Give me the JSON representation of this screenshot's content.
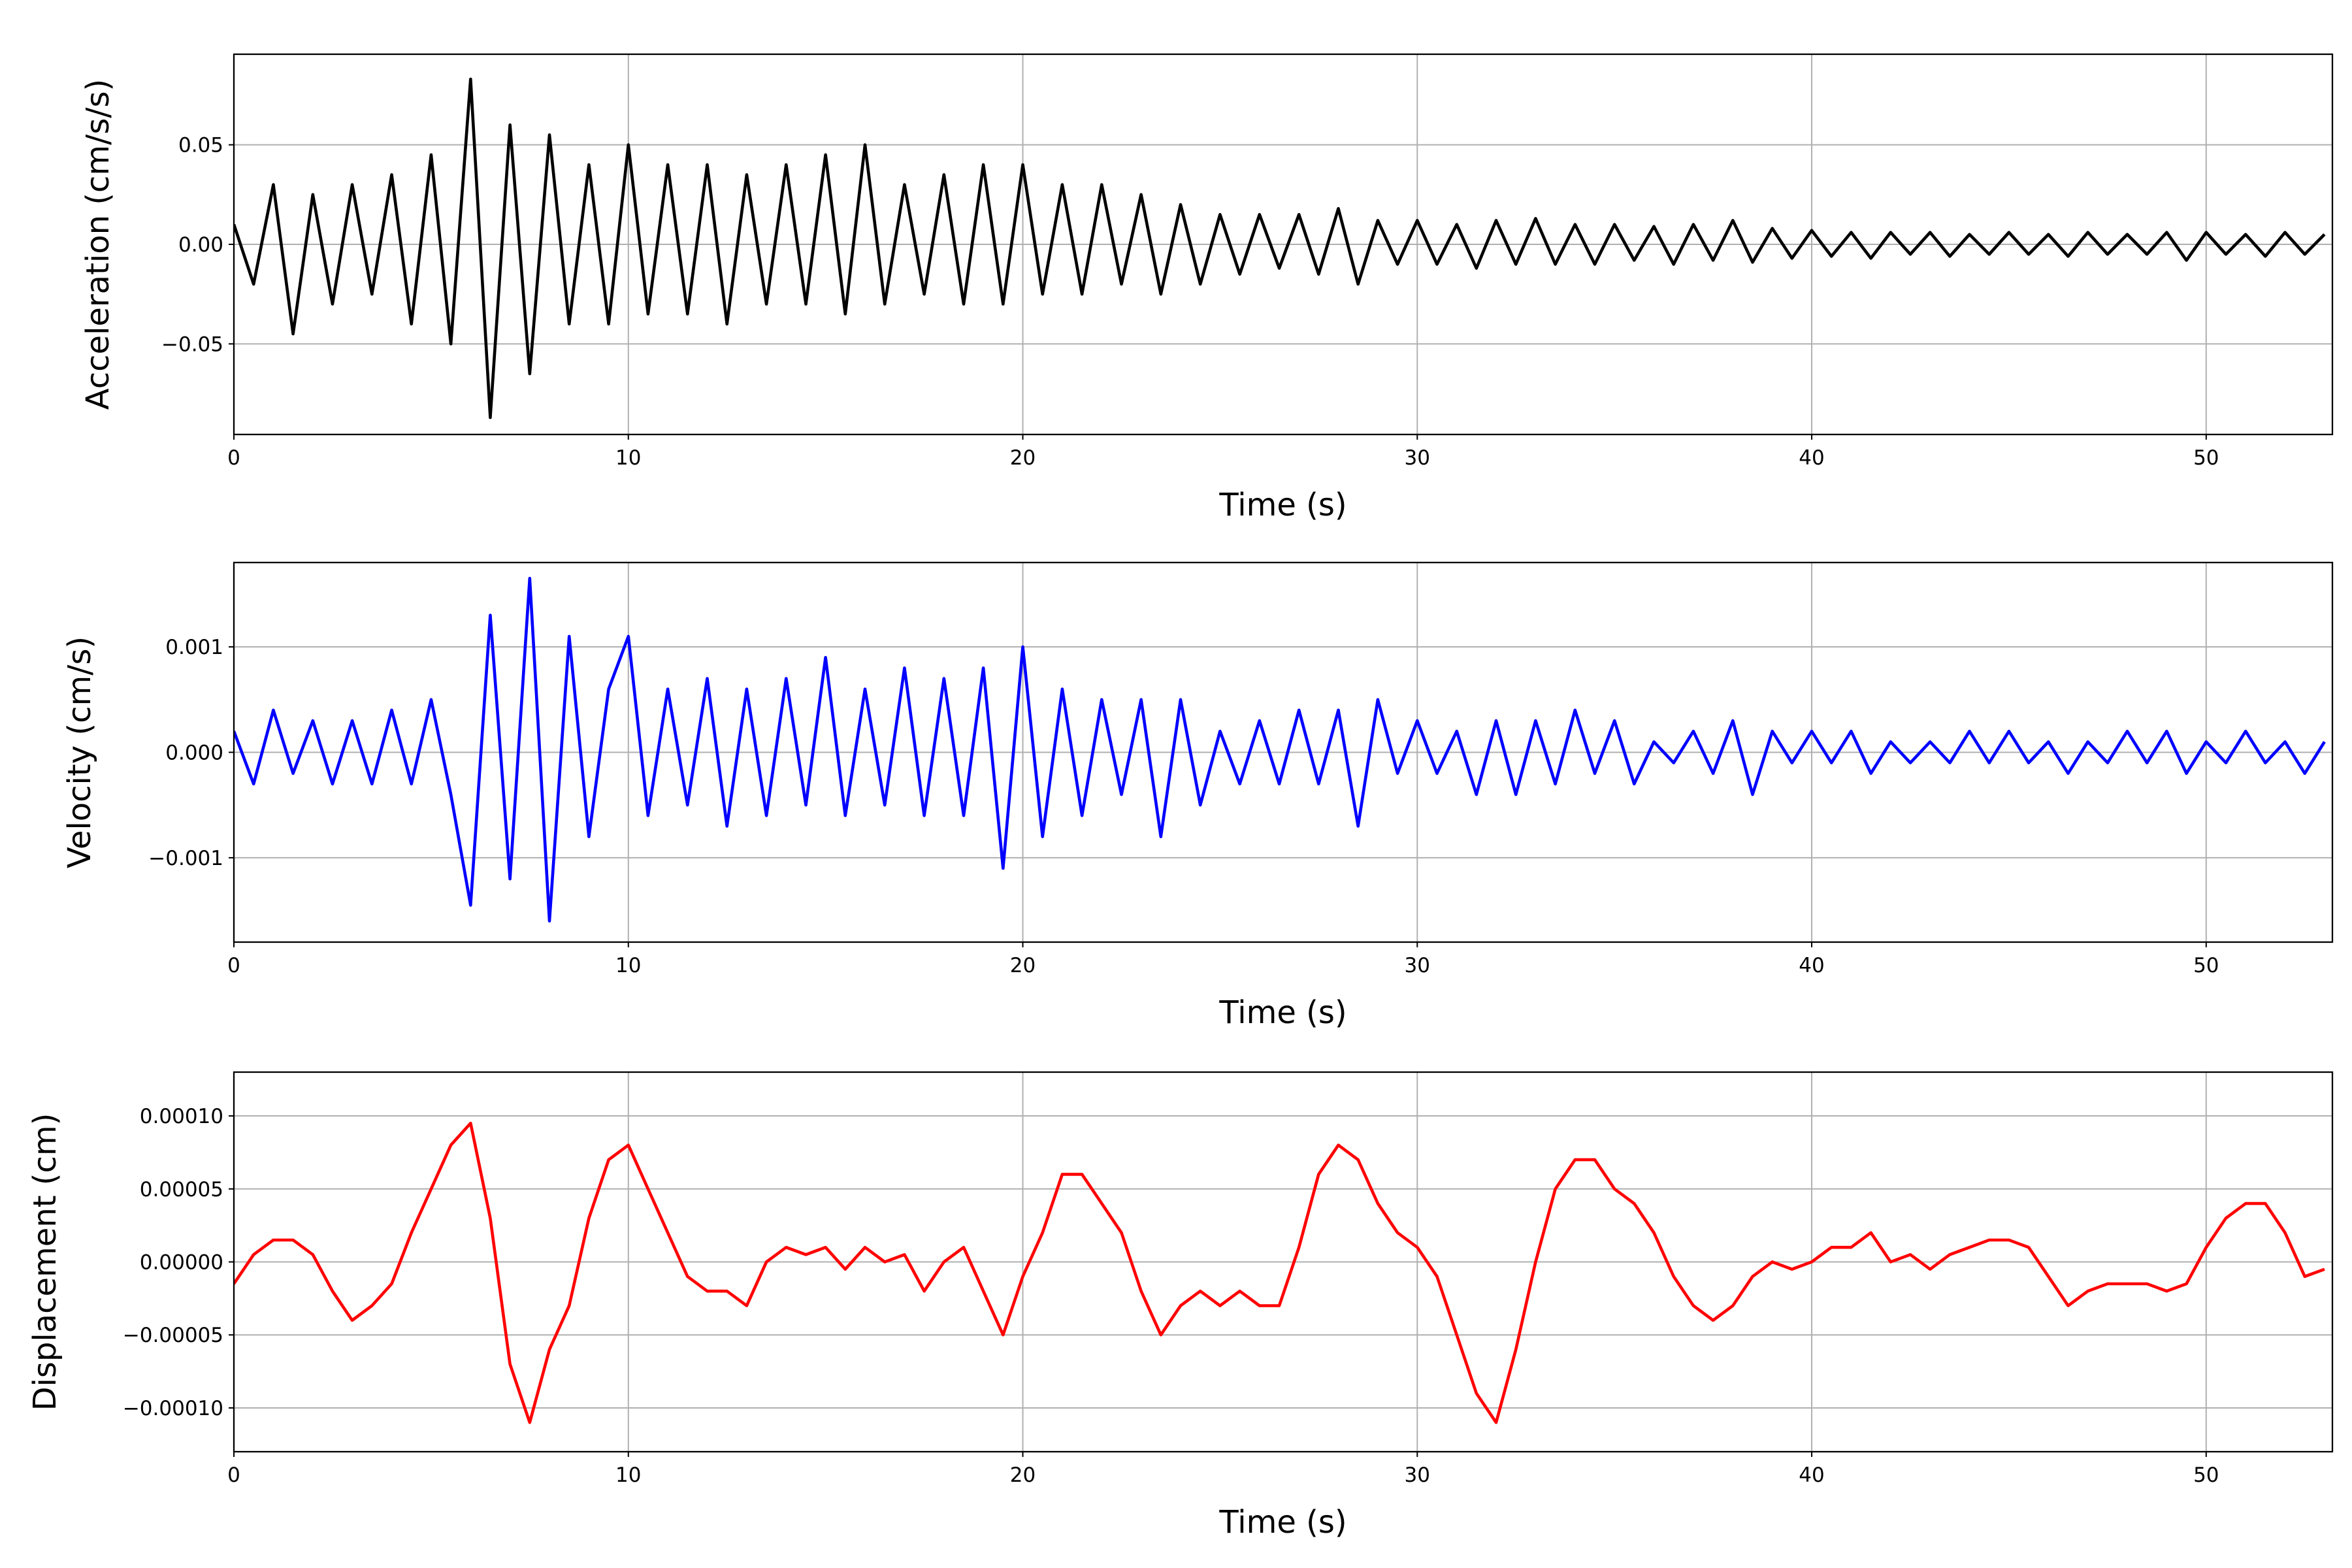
{
  "chart_data": [
    {
      "type": "line",
      "ylabel": "Acceleration (cm/s/s)",
      "xlabel": "Time (s)",
      "color": "#000000",
      "grid": true,
      "xlim": [
        0,
        53.2
      ],
      "xticks": [
        0,
        10,
        20,
        30,
        40,
        50
      ],
      "ylim": [
        -0.0955,
        0.0955
      ],
      "yticks": [
        {
          "value": -0.05,
          "label": "−0.05"
        },
        {
          "value": 0,
          "label": "0.00"
        },
        {
          "value": 0.05,
          "label": "0.05"
        }
      ],
      "x": [
        0,
        0.5,
        1,
        1.5,
        2,
        2.5,
        3,
        3.5,
        4,
        4.5,
        5,
        5.5,
        6,
        6.5,
        7,
        7.5,
        8,
        8.5,
        9,
        9.5,
        10,
        10.5,
        11,
        11.5,
        12,
        12.5,
        13,
        13.5,
        14,
        14.5,
        15,
        15.5,
        16,
        16.5,
        17,
        17.5,
        18,
        18.5,
        19,
        19.5,
        20,
        20.5,
        21,
        21.5,
        22,
        22.5,
        23,
        23.5,
        24,
        24.5,
        25,
        25.5,
        26,
        26.5,
        27,
        27.5,
        28,
        28.5,
        29,
        29.5,
        30,
        30.5,
        31,
        31.5,
        32,
        32.5,
        33,
        33.5,
        34,
        34.5,
        35,
        35.5,
        36,
        36.5,
        37,
        37.5,
        38,
        38.5,
        39,
        39.5,
        40,
        40.5,
        41,
        41.5,
        42,
        42.5,
        43,
        43.5,
        44,
        44.5,
        45,
        45.5,
        46,
        46.5,
        47,
        47.5,
        48,
        48.5,
        49,
        49.5,
        50,
        50.5,
        51,
        51.5,
        52,
        52.5,
        53
      ],
      "values": [
        0.01,
        -0.02,
        0.03,
        -0.045,
        0.025,
        -0.03,
        0.03,
        -0.025,
        0.035,
        -0.04,
        0.045,
        -0.05,
        0.083,
        -0.087,
        0.06,
        -0.065,
        0.055,
        -0.04,
        0.04,
        -0.04,
        0.05,
        -0.035,
        0.04,
        -0.035,
        0.04,
        -0.04,
        0.035,
        -0.03,
        0.04,
        -0.03,
        0.045,
        -0.035,
        0.05,
        -0.03,
        0.03,
        -0.025,
        0.035,
        -0.03,
        0.04,
        -0.03,
        0.04,
        -0.025,
        0.03,
        -0.025,
        0.03,
        -0.02,
        0.025,
        -0.025,
        0.02,
        -0.02,
        0.015,
        -0.015,
        0.015,
        -0.012,
        0.015,
        -0.015,
        0.018,
        -0.02,
        0.012,
        -0.01,
        0.012,
        -0.01,
        0.01,
        -0.012,
        0.012,
        -0.01,
        0.013,
        -0.01,
        0.01,
        -0.01,
        0.01,
        -0.008,
        0.009,
        -0.01,
        0.01,
        -0.008,
        0.012,
        -0.009,
        0.008,
        -0.007,
        0.007,
        -0.006,
        0.006,
        -0.007,
        0.006,
        -0.005,
        0.006,
        -0.006,
        0.005,
        -0.005,
        0.006,
        -0.005,
        0.005,
        -0.006,
        0.006,
        -0.005,
        0.005,
        -0.005,
        0.006,
        -0.008,
        0.006,
        -0.005,
        0.005,
        -0.006,
        0.006,
        -0.005,
        0.005
      ]
    },
    {
      "type": "line",
      "ylabel": "Velocity (cm/s)",
      "xlabel": "Time (s)",
      "color": "#0000ff",
      "grid": true,
      "xlim": [
        0,
        53.2
      ],
      "xticks": [
        0,
        10,
        20,
        30,
        40,
        50
      ],
      "ylim": [
        -0.0018,
        0.0018
      ],
      "yticks": [
        {
          "value": -0.001,
          "label": "−0.001"
        },
        {
          "value": 0,
          "label": "0.000"
        },
        {
          "value": 0.001,
          "label": "0.001"
        }
      ],
      "x": [
        0,
        0.5,
        1,
        1.5,
        2,
        2.5,
        3,
        3.5,
        4,
        4.5,
        5,
        5.5,
        6,
        6.5,
        7,
        7.5,
        8,
        8.5,
        9,
        9.5,
        10,
        10.5,
        11,
        11.5,
        12,
        12.5,
        13,
        13.5,
        14,
        14.5,
        15,
        15.5,
        16,
        16.5,
        17,
        17.5,
        18,
        18.5,
        19,
        19.5,
        20,
        20.5,
        21,
        21.5,
        22,
        22.5,
        23,
        23.5,
        24,
        24.5,
        25,
        25.5,
        26,
        26.5,
        27,
        27.5,
        28,
        28.5,
        29,
        29.5,
        30,
        30.5,
        31,
        31.5,
        32,
        32.5,
        33,
        33.5,
        34,
        34.5,
        35,
        35.5,
        36,
        36.5,
        37,
        37.5,
        38,
        38.5,
        39,
        39.5,
        40,
        40.5,
        41,
        41.5,
        42,
        42.5,
        43,
        43.5,
        44,
        44.5,
        45,
        45.5,
        46,
        46.5,
        47,
        47.5,
        48,
        48.5,
        49,
        49.5,
        50,
        50.5,
        51,
        51.5,
        52,
        52.5,
        53
      ],
      "values": [
        0.0002,
        -0.0003,
        0.0004,
        -0.0002,
        0.0003,
        -0.0003,
        0.0003,
        -0.0003,
        0.0004,
        -0.0003,
        0.0005,
        -0.0004,
        -0.00145,
        0.0013,
        -0.0012,
        0.00165,
        -0.0016,
        0.0011,
        -0.0008,
        0.0006,
        0.0011,
        -0.0006,
        0.0006,
        -0.0005,
        0.0007,
        -0.0007,
        0.0006,
        -0.0006,
        0.0007,
        -0.0005,
        0.0009,
        -0.0006,
        0.0006,
        -0.0005,
        0.0008,
        -0.0006,
        0.0007,
        -0.0006,
        0.0008,
        -0.0011,
        0.001,
        -0.0008,
        0.0006,
        -0.0006,
        0.0005,
        -0.0004,
        0.0005,
        -0.0008,
        0.0005,
        -0.0005,
        0.0002,
        -0.0003,
        0.0003,
        -0.0003,
        0.0004,
        -0.0003,
        0.0004,
        -0.0007,
        0.0005,
        -0.0002,
        0.0003,
        -0.0002,
        0.0002,
        -0.0004,
        0.0003,
        -0.0004,
        0.0003,
        -0.0003,
        0.0004,
        -0.0002,
        0.0003,
        -0.0003,
        0.0001,
        -0.0001,
        0.0002,
        -0.0002,
        0.0003,
        -0.0004,
        0.0002,
        -0.0001,
        0.0002,
        -0.0001,
        0.0002,
        -0.0002,
        0.0001,
        -0.0001,
        0.0001,
        -0.0001,
        0.0002,
        -0.0001,
        0.0002,
        -0.0001,
        0.0001,
        -0.0002,
        0.0001,
        -0.0001,
        0.0002,
        -0.0001,
        0.0002,
        -0.0002,
        0.0001,
        -0.0001,
        0.0002,
        -0.0001,
        0.0001,
        -0.0002,
        0.0001
      ]
    },
    {
      "type": "line",
      "ylabel": "Displacement (cm)",
      "xlabel": "Time (s)",
      "color": "#ff0000",
      "grid": true,
      "xlim": [
        0,
        53.2
      ],
      "xticks": [
        0,
        10,
        20,
        30,
        40,
        50
      ],
      "ylim": [
        -0.00013,
        0.00013
      ],
      "yticks": [
        {
          "value": -0.0001,
          "label": "−0.00010"
        },
        {
          "value": -5e-05,
          "label": "−0.00005"
        },
        {
          "value": 0,
          "label": "0.00000"
        },
        {
          "value": 5e-05,
          "label": "0.00005"
        },
        {
          "value": 0.0001,
          "label": "0.00010"
        }
      ],
      "x": [
        0,
        0.5,
        1,
        1.5,
        2,
        2.5,
        3,
        3.5,
        4,
        4.5,
        5,
        5.5,
        6,
        6.5,
        7,
        7.5,
        8,
        8.5,
        9,
        9.5,
        10,
        10.5,
        11,
        11.5,
        12,
        12.5,
        13,
        13.5,
        14,
        14.5,
        15,
        15.5,
        16,
        16.5,
        17,
        17.5,
        18,
        18.5,
        19,
        19.5,
        20,
        20.5,
        21,
        21.5,
        22,
        22.5,
        23,
        23.5,
        24,
        24.5,
        25,
        25.5,
        26,
        26.5,
        27,
        27.5,
        28,
        28.5,
        29,
        29.5,
        30,
        30.5,
        31,
        31.5,
        32,
        32.5,
        33,
        33.5,
        34,
        34.5,
        35,
        35.5,
        36,
        36.5,
        37,
        37.5,
        38,
        38.5,
        39,
        39.5,
        40,
        40.5,
        41,
        41.5,
        42,
        42.5,
        43,
        43.5,
        44,
        44.5,
        45,
        45.5,
        46,
        46.5,
        47,
        47.5,
        48,
        48.5,
        49,
        49.5,
        50,
        50.5,
        51,
        51.5,
        52,
        52.5,
        53
      ],
      "values": [
        -1.5e-05,
        5e-06,
        1.5e-05,
        1.5e-05,
        5e-06,
        -2e-05,
        -4e-05,
        -3e-05,
        -1.5e-05,
        2e-05,
        5e-05,
        8e-05,
        9.5e-05,
        3e-05,
        -7e-05,
        -0.00011,
        -6e-05,
        -3e-05,
        3e-05,
        7e-05,
        8e-05,
        5e-05,
        2e-05,
        -1e-05,
        -2e-05,
        -2e-05,
        -3e-05,
        0,
        1e-05,
        5e-06,
        1e-05,
        -5e-06,
        1e-05,
        0,
        5e-06,
        -2e-05,
        0,
        1e-05,
        -2e-05,
        -5e-05,
        -1e-05,
        2e-05,
        6e-05,
        6e-05,
        4e-05,
        2e-05,
        -2e-05,
        -5e-05,
        -3e-05,
        -2e-05,
        -3e-05,
        -2e-05,
        -3e-05,
        -3e-05,
        1e-05,
        6e-05,
        8e-05,
        7e-05,
        4e-05,
        2e-05,
        1e-05,
        -1e-05,
        -5e-05,
        -9e-05,
        -0.00011,
        -6e-05,
        0,
        5e-05,
        7e-05,
        7e-05,
        5e-05,
        4e-05,
        2e-05,
        -1e-05,
        -3e-05,
        -4e-05,
        -3e-05,
        -1e-05,
        0,
        -5e-06,
        0,
        1e-05,
        1e-05,
        2e-05,
        0,
        5e-06,
        -5e-06,
        5e-06,
        1e-05,
        1.5e-05,
        1.5e-05,
        1e-05,
        -1e-05,
        -3e-05,
        -2e-05,
        -1.5e-05,
        -1.5e-05,
        -1.5e-05,
        -2e-05,
        -1.5e-05,
        1e-05,
        3e-05,
        4e-05,
        4e-05,
        2e-05,
        -1e-05,
        -5e-06
      ]
    }
  ]
}
